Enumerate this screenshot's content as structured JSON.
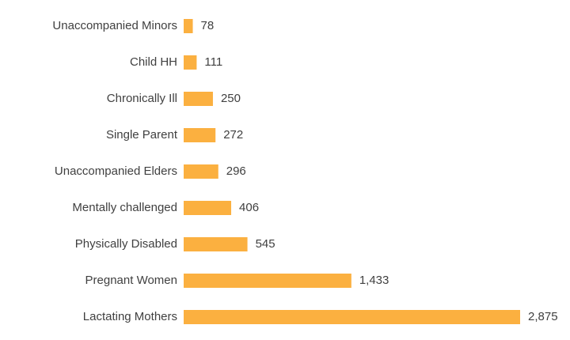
{
  "chart_data": {
    "type": "barh",
    "categories": [
      "Unaccompanied Minors",
      "Child HH",
      "Chronically Ill",
      "Single Parent",
      "Unaccompanied Elders",
      "Mentally challenged",
      "Physically Disabled",
      "Pregnant Women",
      "Lactating Mothers"
    ],
    "values": [
      78,
      111,
      250,
      272,
      296,
      406,
      545,
      1433,
      2875
    ],
    "value_labels": [
      "78",
      "111",
      "250",
      "272",
      "296",
      "406",
      "545",
      "1,433",
      "2,875"
    ],
    "color": "#fbb040"
  }
}
